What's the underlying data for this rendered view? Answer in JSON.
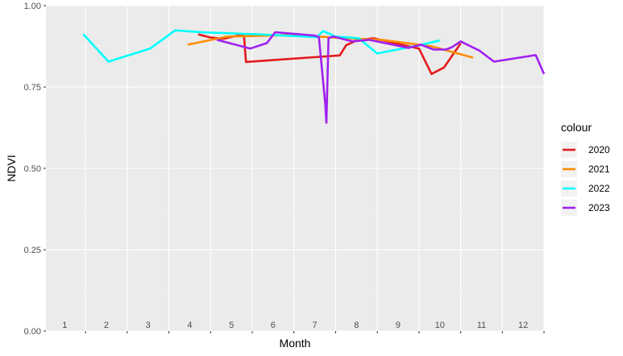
{
  "chart_data": {
    "type": "line",
    "xlabel": "Month",
    "ylabel": "NDVI",
    "xlim": [
      0.55,
      12.5
    ],
    "ylim": [
      0,
      1
    ],
    "x_ticks": [
      1,
      2,
      3,
      4,
      5,
      6,
      7,
      8,
      9,
      10,
      11,
      12
    ],
    "y_ticks": [
      0,
      0.25,
      0.5,
      0.75,
      1
    ],
    "y_tick_labels": [
      "0.00",
      "0.25",
      "0.50",
      "0.75",
      "1.00"
    ],
    "grid": true,
    "legend": {
      "title": "colour",
      "position": "right"
    },
    "series": [
      {
        "name": "2020",
        "color": "#e41a1c",
        "points": [
          [
            4.2,
            0.912
          ],
          [
            4.5,
            0.902
          ],
          [
            4.8,
            0.898
          ],
          [
            5.3,
            0.912
          ],
          [
            5.35,
            0.827
          ],
          [
            7.6,
            0.847
          ],
          [
            7.75,
            0.878
          ],
          [
            8.0,
            0.893
          ],
          [
            8.4,
            0.9
          ],
          [
            9.5,
            0.868
          ],
          [
            9.8,
            0.79
          ],
          [
            10.1,
            0.81
          ],
          [
            10.5,
            0.884
          ]
        ]
      },
      {
        "name": "2021",
        "color": "#ff8c00",
        "points": [
          [
            3.95,
            0.88
          ],
          [
            4.9,
            0.905
          ],
          [
            6.5,
            0.91
          ],
          [
            7.7,
            0.9
          ],
          [
            8.6,
            0.895
          ],
          [
            9.8,
            0.875
          ],
          [
            10.8,
            0.84
          ]
        ]
      },
      {
        "name": "2022",
        "color": "#00ffff",
        "points": [
          [
            1.45,
            0.912
          ],
          [
            2.05,
            0.828
          ],
          [
            3.05,
            0.868
          ],
          [
            3.65,
            0.924
          ],
          [
            4.3,
            0.918
          ],
          [
            5.6,
            0.912
          ],
          [
            6.8,
            0.905
          ],
          [
            7.05,
            0.903
          ],
          [
            7.2,
            0.922
          ],
          [
            7.5,
            0.905
          ],
          [
            8.05,
            0.9
          ],
          [
            8.5,
            0.853
          ],
          [
            9.5,
            0.878
          ],
          [
            10.0,
            0.893
          ]
        ]
      },
      {
        "name": "2023",
        "color": "#a020f0",
        "points": [
          [
            4.65,
            0.895
          ],
          [
            5.45,
            0.868
          ],
          [
            5.85,
            0.885
          ],
          [
            6.05,
            0.918
          ],
          [
            7.0,
            0.908
          ],
          [
            7.1,
            0.903
          ],
          [
            7.25,
            0.7
          ],
          [
            7.28,
            0.64
          ],
          [
            7.33,
            0.9
          ],
          [
            7.45,
            0.905
          ],
          [
            7.9,
            0.89
          ],
          [
            8.3,
            0.895
          ],
          [
            9.25,
            0.87
          ],
          [
            9.55,
            0.88
          ],
          [
            9.85,
            0.865
          ],
          [
            10.15,
            0.865
          ],
          [
            10.3,
            0.873
          ],
          [
            10.5,
            0.89
          ],
          [
            10.95,
            0.862
          ],
          [
            11.3,
            0.828
          ],
          [
            12.3,
            0.848
          ],
          [
            12.8,
            0.79
          ]
        ]
      }
    ]
  }
}
